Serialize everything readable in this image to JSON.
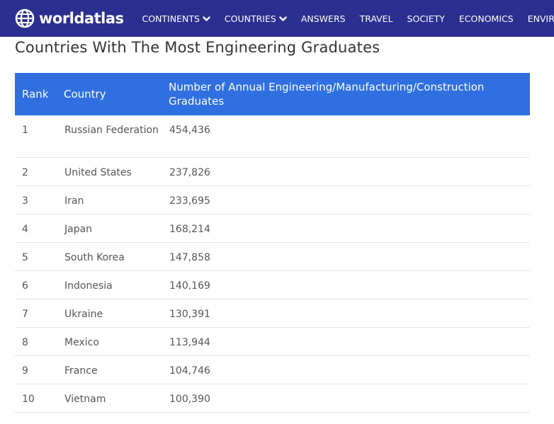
{
  "brand": {
    "logo_text": "worldatlas"
  },
  "nav": {
    "items": [
      {
        "label": "CONTINENTS",
        "dropdown": true
      },
      {
        "label": "COUNTRIES",
        "dropdown": true
      },
      {
        "label": "ANSWERS",
        "dropdown": false
      },
      {
        "label": "TRAVEL",
        "dropdown": false
      },
      {
        "label": "SOCIETY",
        "dropdown": false
      },
      {
        "label": "ECONOMICS",
        "dropdown": false
      },
      {
        "label": "ENVIRONMENT",
        "dropdown": false
      }
    ]
  },
  "page": {
    "title": "Countries With The Most Engineering Graduates"
  },
  "table": {
    "headers": {
      "rank": "Rank",
      "country": "Country",
      "graduates": "Number of Annual Engineering/Manufacturing/Construction Graduates"
    },
    "rows": [
      {
        "rank": "1",
        "country": "Russian Federation",
        "graduates": "454,436"
      },
      {
        "rank": "2",
        "country": "United States",
        "graduates": "237,826"
      },
      {
        "rank": "3",
        "country": "Iran",
        "graduates": "233,695"
      },
      {
        "rank": "4",
        "country": "Japan",
        "graduates": "168,214"
      },
      {
        "rank": "5",
        "country": "South Korea",
        "graduates": "147,858"
      },
      {
        "rank": "6",
        "country": "Indonesia",
        "graduates": "140,169"
      },
      {
        "rank": "7",
        "country": "Ukraine",
        "graduates": "130,391"
      },
      {
        "rank": "8",
        "country": "Mexico",
        "graduates": "113,944"
      },
      {
        "rank": "9",
        "country": "France",
        "graduates": "104,746"
      },
      {
        "rank": "10",
        "country": "Vietnam",
        "graduates": "100,390"
      }
    ]
  },
  "colors": {
    "navbar": "#2b2f8f",
    "table_header": "#2f6fe0",
    "row_border": "#e3e3e3"
  },
  "icons": {
    "logo": "globe-icon",
    "dropdown": "chevron-down-icon"
  }
}
